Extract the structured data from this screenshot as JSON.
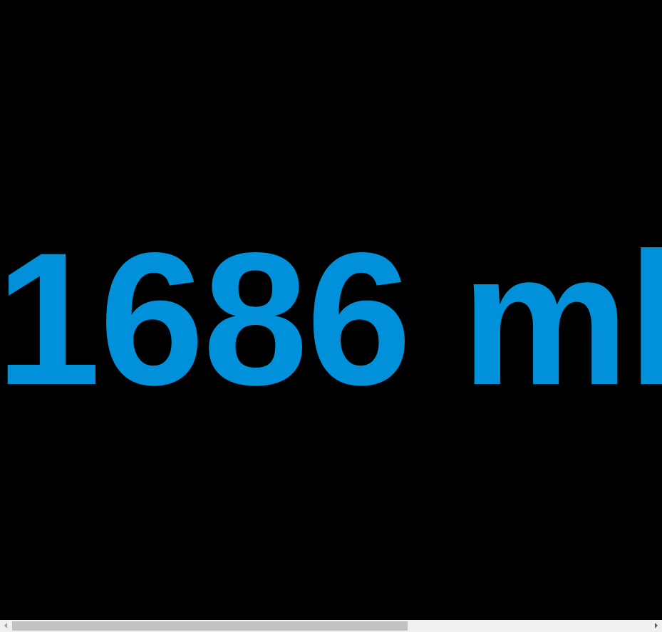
{
  "display": {
    "value": "1686 ml",
    "color": "#0091DA",
    "background": "#000000"
  },
  "scrollbar": {
    "orientation": "horizontal",
    "thumb_fraction": 0.62,
    "thumb_offset_fraction": 0.0,
    "left_arrow_icon": "arrow-left-icon",
    "right_arrow_icon": "arrow-right-icon"
  }
}
